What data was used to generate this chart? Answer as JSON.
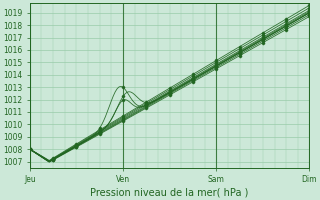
{
  "title": "Pression niveau de la mer( hPa )",
  "ylabel_values": [
    1007,
    1008,
    1009,
    1010,
    1011,
    1012,
    1013,
    1014,
    1015,
    1016,
    1017,
    1018,
    1019
  ],
  "ylim": [
    1006.5,
    1019.8
  ],
  "xlim": [
    0,
    72
  ],
  "xticks": [
    0,
    24,
    48,
    72
  ],
  "xticklabels": [
    "Jeu",
    "Ven",
    "Sam",
    "Dim"
  ],
  "bg_color": "#cce8d8",
  "grid_color": "#99ccaa",
  "line_color": "#226622"
}
